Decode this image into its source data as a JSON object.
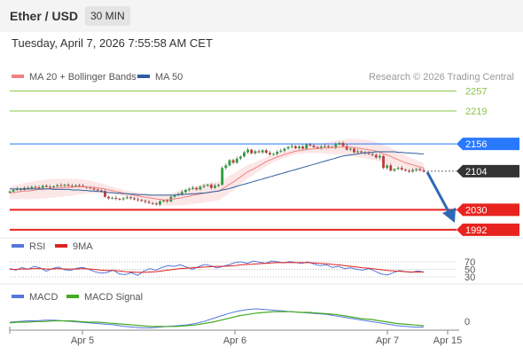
{
  "header": {
    "instrument": "Ether / USD",
    "interval": "30 MIN",
    "timestamp": "Tuesday, April 7, 2026 7:55:58 AM CET"
  },
  "colors": {
    "ma20": "#f08080",
    "bollinger_fill": "#fce4e4",
    "ma50": "#2d5f9e",
    "resistance": "#8bc34a",
    "pivot": "#2979ff",
    "support": "#e8231f",
    "current": "#333333",
    "rsi": "#5577dd",
    "rsi_ma": "#dd2222",
    "macd": "#5577dd",
    "macd_signal": "#44aa22",
    "candle_up": "#2e9e3e",
    "candle_down": "#c23a3a",
    "forecast_arrow": "#2f69b5"
  },
  "chart_data": [
    {
      "type": "line",
      "panel": "price",
      "legend": [
        {
          "label": "MA 20 + Bollinger Bands",
          "color_key": "ma20"
        },
        {
          "label": "MA 50",
          "color_key": "ma50"
        }
      ],
      "watermark": "Research © 2026 Trading Central",
      "x_ticks": [
        "Apr 5",
        "Apr 6",
        "Apr 7",
        "Apr 15"
      ],
      "price_levels": [
        {
          "label": "2257",
          "value": 2257,
          "kind": "resistance"
        },
        {
          "label": "2219",
          "value": 2219,
          "kind": "resistance"
        },
        {
          "label": "2156",
          "value": 2156,
          "kind": "pivot"
        },
        {
          "label": "2104",
          "value": 2104,
          "kind": "current"
        },
        {
          "label": "2030",
          "value": 2030,
          "kind": "support"
        },
        {
          "label": "1992",
          "value": 1992,
          "kind": "support"
        }
      ],
      "ylim": [
        1990,
        2270
      ],
      "x_range": [
        0,
        172
      ],
      "close": [
        2065,
        2068,
        2070,
        2068,
        2072,
        2071,
        2074,
        2073,
        2072,
        2076,
        2074,
        2073,
        2075,
        2077,
        2076,
        2078,
        2076,
        2075,
        2077,
        2076,
        2074,
        2073,
        2071,
        2069,
        2067,
        2066,
        2055,
        2052,
        2053,
        2051,
        2050,
        2052,
        2054,
        2052,
        2050,
        2049,
        2047,
        2045,
        2043,
        2042,
        2040,
        2046,
        2048,
        2046,
        2055,
        2058,
        2060,
        2064,
        2068,
        2070,
        2072,
        2069,
        2074,
        2076,
        2078,
        2072,
        2076,
        2078,
        2110,
        2115,
        2125,
        2120,
        2128,
        2132,
        2140,
        2145,
        2138,
        2142,
        2140,
        2144,
        2139,
        2136,
        2137,
        2141,
        2143,
        2147,
        2150,
        2152,
        2148,
        2151,
        2147,
        2155,
        2153,
        2150,
        2148,
        2151,
        2152,
        2150,
        2149,
        2155,
        2158,
        2152,
        2145,
        2147,
        2140,
        2142,
        2140,
        2138,
        2137,
        2135,
        2130,
        2133,
        2110,
        2115,
        2105,
        2108,
        2110,
        2107,
        2105,
        2103,
        2106,
        2108,
        2106,
        2104
      ],
      "ma20": [
        2062,
        2063,
        2064,
        2065,
        2066,
        2066,
        2067,
        2068,
        2069,
        2069,
        2070,
        2071,
        2071,
        2072,
        2072,
        2073,
        2073,
        2073,
        2074,
        2074,
        2074,
        2074,
        2073,
        2073,
        2072,
        2071,
        2070,
        2068,
        2067,
        2065,
        2064,
        2062,
        2061,
        2059,
        2058,
        2057,
        2055,
        2054,
        2053,
        2052,
        2051,
        2050,
        2049,
        2049,
        2050,
        2051,
        2052,
        2053,
        2055,
        2056,
        2058,
        2059,
        2060,
        2062,
        2063,
        2064,
        2065,
        2066,
        2070,
        2074,
        2079,
        2083,
        2088,
        2093,
        2098,
        2103,
        2106,
        2110,
        2114,
        2118,
        2122,
        2125,
        2128,
        2131,
        2133,
        2136,
        2138,
        2140,
        2142,
        2143,
        2144,
        2146,
        2146,
        2147,
        2147,
        2148,
        2148,
        2148,
        2149,
        2149,
        2150,
        2150,
        2150,
        2150,
        2149,
        2148,
        2147,
        2146,
        2145,
        2144,
        2142,
        2140,
        2137,
        2135,
        2132,
        2129,
        2126,
        2123,
        2120,
        2118,
        2116,
        2114,
        2112,
        2110
      ],
      "ma50": [
        2070,
        2070,
        2070,
        2070,
        2070,
        2070,
        2070,
        2070,
        2070,
        2070,
        2070,
        2070,
        2069,
        2069,
        2069,
        2069,
        2069,
        2068,
        2068,
        2068,
        2067,
        2067,
        2066,
        2066,
        2065,
        2065,
        2064,
        2063,
        2063,
        2062,
        2062,
        2061,
        2061,
        2060,
        2060,
        2059,
        2059,
        2059,
        2058,
        2058,
        2058,
        2058,
        2058,
        2058,
        2058,
        2058,
        2059,
        2059,
        2060,
        2060,
        2061,
        2061,
        2062,
        2062,
        2063,
        2064,
        2065,
        2066,
        2068,
        2069,
        2071,
        2073,
        2075,
        2077,
        2079,
        2081,
        2083,
        2085,
        2087,
        2089,
        2091,
        2093,
        2095,
        2097,
        2099,
        2101,
        2103,
        2105,
        2107,
        2109,
        2111,
        2113,
        2115,
        2117,
        2119,
        2121,
        2123,
        2125,
        2127,
        2129,
        2131,
        2133,
        2134,
        2135,
        2136,
        2137,
        2138,
        2139,
        2140,
        2140,
        2141,
        2141,
        2141,
        2141,
        2141,
        2141,
        2140,
        2140,
        2139,
        2139,
        2138,
        2138,
        2137,
        2137
      ]
    },
    {
      "type": "line",
      "panel": "rsi",
      "legend": [
        {
          "label": "RSI",
          "color_key": "rsi"
        },
        {
          "label": "9MA",
          "color_key": "rsi_ma"
        }
      ],
      "y_ticks": [
        "70",
        "50",
        "30"
      ],
      "ylim": [
        20,
        80
      ],
      "rsi": [
        52,
        48,
        55,
        50,
        58,
        54,
        45,
        52,
        56,
        49,
        47,
        53,
        55,
        50,
        44,
        40,
        42,
        48,
        38,
        36,
        41,
        34,
        45,
        52,
        48,
        55,
        60,
        58,
        62,
        56,
        50,
        57,
        63,
        60,
        54,
        58,
        62,
        68,
        70,
        66,
        72,
        69,
        66,
        72,
        70,
        67,
        71,
        68,
        66,
        70,
        64,
        60,
        62,
        55,
        58,
        52,
        54,
        50,
        48,
        52,
        45,
        38,
        35,
        41,
        47,
        44,
        42,
        46,
        43
      ],
      "rsi_ma": [
        50,
        50,
        51,
        51,
        52,
        52,
        51,
        51,
        52,
        51,
        51,
        51,
        52,
        51,
        50,
        48,
        47,
        47,
        46,
        44,
        43,
        42,
        42,
        43,
        44,
        46,
        48,
        50,
        52,
        53,
        54,
        55,
        56,
        57,
        58,
        58,
        59,
        60,
        62,
        63,
        64,
        65,
        66,
        67,
        68,
        68,
        68,
        68,
        68,
        68,
        67,
        66,
        65,
        63,
        62,
        60,
        58,
        56,
        54,
        53,
        51,
        49,
        47,
        46,
        45,
        44,
        43,
        43,
        43
      ]
    },
    {
      "type": "line",
      "panel": "macd",
      "legend": [
        {
          "label": "MACD",
          "color_key": "macd"
        },
        {
          "label": "MACD Signal",
          "color_key": "macd_signal"
        }
      ],
      "y_ticks": [
        "0"
      ],
      "ylim": [
        -10,
        30
      ],
      "macd": [
        5,
        6,
        7,
        7,
        8,
        8,
        7,
        6,
        5,
        4,
        3,
        2,
        1,
        -1,
        -2,
        -3,
        -3,
        -2,
        -1,
        0,
        1,
        3,
        6,
        10,
        14,
        18,
        21,
        23,
        24,
        23,
        22,
        21,
        20,
        19,
        18,
        17,
        16,
        14,
        12,
        10,
        8,
        6,
        4,
        2,
        0,
        -1,
        -2,
        -2
      ],
      "macd_signal": [
        4,
        5,
        5,
        6,
        6,
        7,
        7,
        7,
        6,
        5,
        5,
        4,
        3,
        2,
        1,
        0,
        -1,
        -1,
        -1,
        -1,
        0,
        1,
        3,
        5,
        8,
        11,
        14,
        16,
        18,
        19,
        20,
        20,
        20,
        19,
        19,
        18,
        17,
        16,
        14,
        12,
        10,
        9,
        7,
        5,
        3,
        2,
        1,
        0
      ]
    }
  ]
}
